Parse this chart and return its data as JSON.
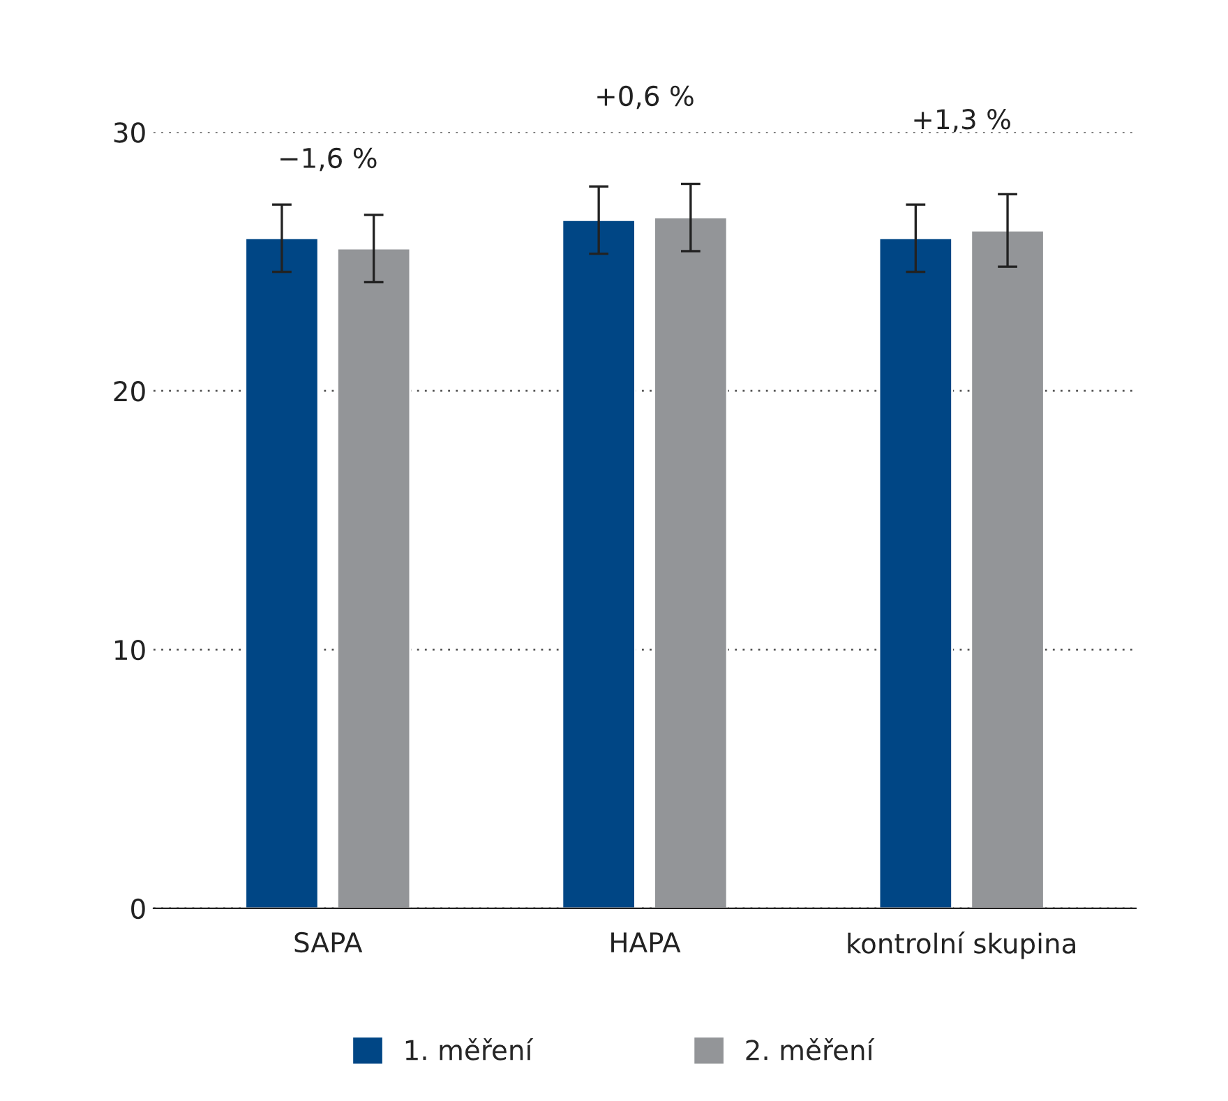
{
  "chart_data": {
    "type": "bar",
    "categories": [
      "SAPA",
      "HAPA",
      "kontrolní skupina"
    ],
    "series": [
      {
        "name": "1. měření",
        "color": "#004685",
        "values": [
          25.9,
          26.6,
          25.9
        ],
        "errors": [
          1.3,
          1.3,
          1.3
        ]
      },
      {
        "name": "2. měření",
        "color": "#939598",
        "values": [
          25.5,
          26.7,
          26.2
        ],
        "errors": [
          1.3,
          1.3,
          1.4
        ]
      }
    ],
    "annotations": [
      "−1,6 %",
      "+0,6 %",
      "+1,3 %"
    ],
    "ylim": [
      0,
      30
    ],
    "yticks": [
      0,
      10,
      20,
      30
    ],
    "grid": "y",
    "legend": "bottom"
  }
}
